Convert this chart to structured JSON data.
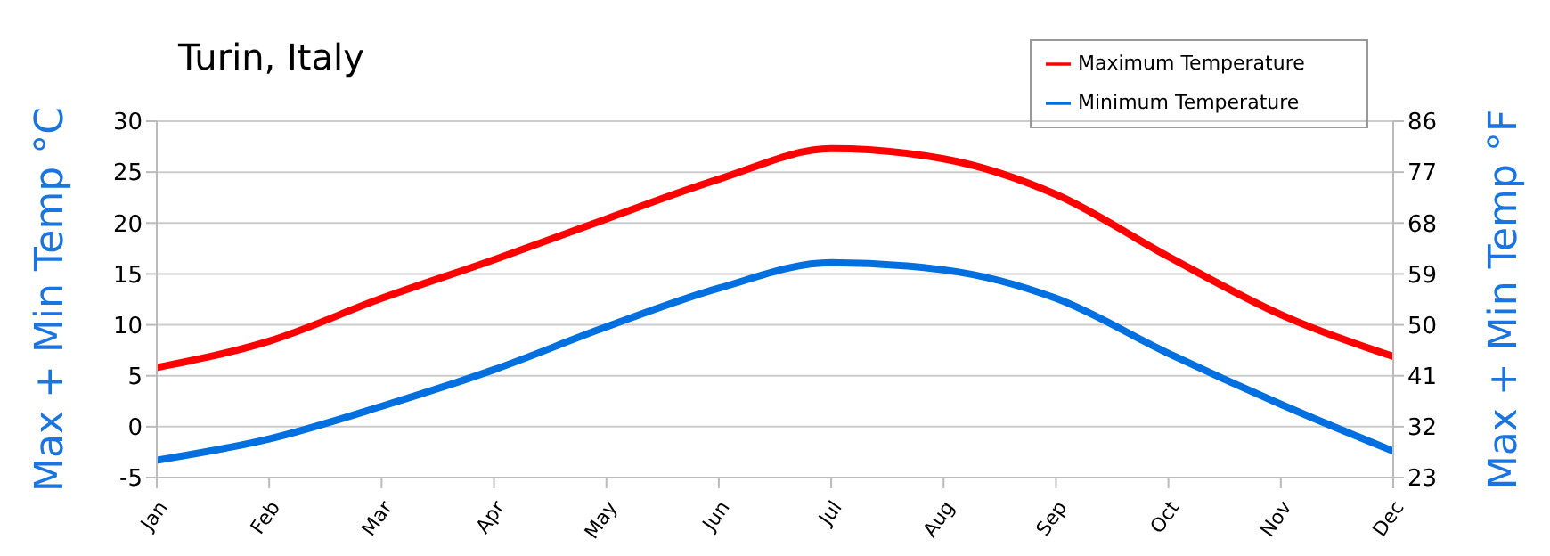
{
  "chart_data": {
    "type": "line",
    "title": "Turin, Italy",
    "ylabel": "Max + Min Temp °C",
    "y2label": "Max + Min Temp °F",
    "categories": [
      "Jan",
      "Feb",
      "Mar",
      "Apr",
      "May",
      "Jun",
      "Jul",
      "Aug",
      "Sep",
      "Oct",
      "Nov",
      "Dec"
    ],
    "series": [
      {
        "name": "Maximum Temperature",
        "color": "#ff0000",
        "values": [
          5.8,
          8.4,
          12.6,
          16.4,
          20.4,
          24.3,
          27.3,
          26.3,
          22.8,
          16.7,
          11,
          6.9
        ]
      },
      {
        "name": "Minimum Temperature",
        "color": "#0070e0",
        "values": [
          -3.3,
          -1.2,
          2,
          5.6,
          9.8,
          13.6,
          16.1,
          15.4,
          12.6,
          7.2,
          2.2,
          -2.4
        ]
      }
    ],
    "ylim": [
      -5,
      30
    ],
    "yticks": [
      -5,
      0,
      5,
      10,
      15,
      20,
      25,
      30
    ],
    "y2lim": [
      23,
      86
    ],
    "y2ticks": [
      23,
      32,
      41,
      50,
      59,
      68,
      77,
      86
    ],
    "grid": "y",
    "legend": "top right",
    "marker": "none",
    "line_style": "solid"
  }
}
